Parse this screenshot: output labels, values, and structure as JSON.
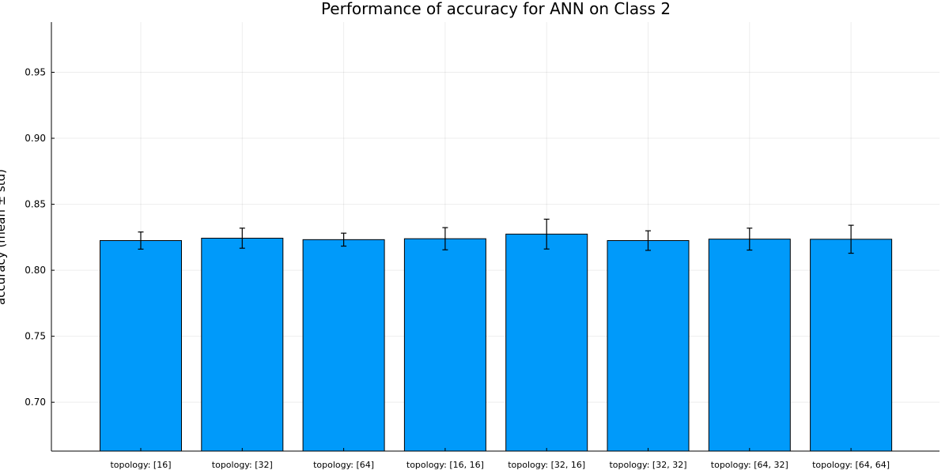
{
  "chart_data": {
    "type": "bar",
    "title": "Performance of accuracy for ANN on Class 2",
    "xlabel": "",
    "ylabel": "accuracy (mean ± std)",
    "categories": [
      "topology: [16]",
      "topology: [32]",
      "topology: [64]",
      "topology: [16, 16]",
      "topology: [32, 16]",
      "topology: [32, 32]",
      "topology: [64, 32]",
      "topology: [64, 64]"
    ],
    "values": [
      0.8225,
      0.8243,
      0.8232,
      0.8239,
      0.8274,
      0.8225,
      0.8236,
      0.8235
    ],
    "errors": [
      0.0065,
      0.0076,
      0.0049,
      0.0084,
      0.0113,
      0.0074,
      0.0083,
      0.0106
    ],
    "ylim": [
      0.663,
      0.988
    ],
    "yticks": [
      "0.70",
      "0.75",
      "0.80",
      "0.85",
      "0.90",
      "0.95"
    ],
    "grid": true,
    "legend": "none",
    "bar_color": "#009AFA"
  }
}
